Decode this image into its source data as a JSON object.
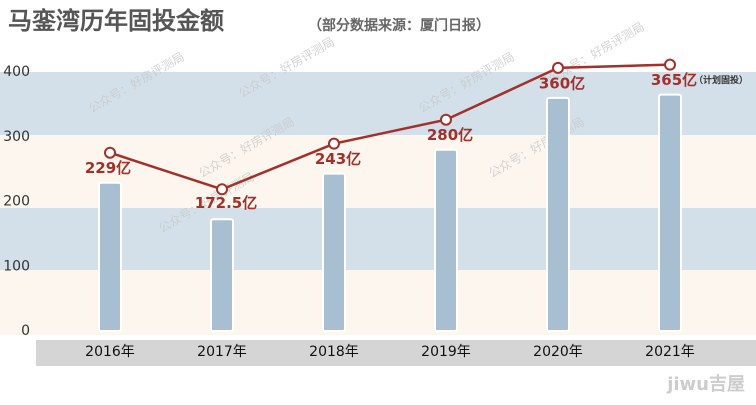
{
  "chart_data": {
    "type": "bar_line",
    "title": "马銮湾历年固投金额",
    "subtitle": "（部分数据来源：厦门日报）",
    "categories": [
      "2016年",
      "2017年",
      "2018年",
      "2019年",
      "2020年",
      "2021年"
    ],
    "values": [
      229,
      172.5,
      243,
      280,
      360,
      365
    ],
    "value_labels": [
      "229亿",
      "172.5亿",
      "243亿",
      "280亿",
      "360亿",
      "365亿"
    ],
    "annotation": "（计划固投）",
    "bar_color": "#a8bfd2",
    "line_color": "#a3302a",
    "ylim": [
      0,
      400
    ],
    "yticks": [
      0,
      100,
      200,
      300,
      400
    ],
    "watermark": "公众号：好房评测局",
    "logo": "jiwu吉屋"
  }
}
